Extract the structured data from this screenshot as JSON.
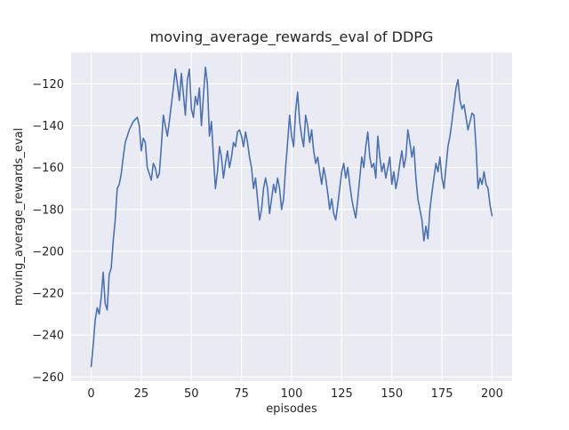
{
  "chart_data": {
    "type": "line",
    "title": "moving_average_rewards_eval of DDPG",
    "xlabel": "episodes",
    "ylabel": "moving_average_rewards_eval",
    "legend_position": "none",
    "grid": true,
    "xlim": [
      -10,
      210
    ],
    "ylim": [
      -262,
      -105
    ],
    "xticks": [
      0,
      25,
      50,
      75,
      100,
      125,
      150,
      175,
      200
    ],
    "xtick_labels": [
      "0",
      "25",
      "50",
      "75",
      "100",
      "125",
      "150",
      "175",
      "200"
    ],
    "yticks": [
      -260,
      -240,
      -220,
      -200,
      -180,
      -160,
      -140,
      -120
    ],
    "ytick_labels": [
      "−260",
      "−240",
      "−220",
      "−200",
      "−180",
      "−160",
      "−140",
      "−120"
    ],
    "styles": {
      "figure_bg": "#ffffff",
      "plot_bg": "#eaeaf2",
      "grid_color": "#ffffff",
      "line_color": "#4c72b0",
      "text_color": "#262626"
    },
    "series": [
      {
        "name": "moving_average_rewards_eval",
        "color": "#4c72b0",
        "x_start": 0,
        "x_step": 1,
        "values": [
          -255,
          -245,
          -233,
          -227,
          -230,
          -222,
          -210,
          -225,
          -228,
          -211,
          -208,
          -195,
          -185,
          -170,
          -168,
          -163,
          -155,
          -148,
          -145,
          -142,
          -140,
          -138,
          -137,
          -136,
          -140,
          -152,
          -146,
          -148,
          -160,
          -163,
          -166,
          -158,
          -160,
          -165,
          -163,
          -150,
          -135,
          -140,
          -145,
          -138,
          -130,
          -122,
          -113,
          -120,
          -128,
          -115,
          -125,
          -135,
          -118,
          -113,
          -132,
          -136,
          -126,
          -130,
          -122,
          -140,
          -126,
          -112,
          -120,
          -145,
          -138,
          -155,
          -170,
          -162,
          -150,
          -155,
          -165,
          -158,
          -152,
          -160,
          -155,
          -148,
          -150,
          -143,
          -142,
          -145,
          -150,
          -143,
          -148,
          -155,
          -160,
          -170,
          -165,
          -175,
          -185,
          -180,
          -170,
          -165,
          -170,
          -182,
          -175,
          -168,
          -172,
          -165,
          -170,
          -180,
          -175,
          -160,
          -148,
          -135,
          -145,
          -150,
          -133,
          -124,
          -138,
          -145,
          -150,
          -135,
          -140,
          -148,
          -142,
          -152,
          -158,
          -155,
          -162,
          -168,
          -160,
          -165,
          -172,
          -180,
          -175,
          -182,
          -185,
          -178,
          -170,
          -162,
          -158,
          -165,
          -160,
          -168,
          -175,
          -180,
          -184,
          -175,
          -165,
          -155,
          -160,
          -150,
          -143,
          -155,
          -160,
          -158,
          -165,
          -145,
          -155,
          -162,
          -158,
          -165,
          -160,
          -155,
          -168,
          -162,
          -170,
          -165,
          -158,
          -152,
          -160,
          -155,
          -142,
          -148,
          -155,
          -150,
          -165,
          -175,
          -180,
          -185,
          -195,
          -188,
          -194,
          -180,
          -172,
          -165,
          -158,
          -162,
          -155,
          -165,
          -170,
          -160,
          -150,
          -145,
          -138,
          -130,
          -122,
          -118,
          -128,
          -132,
          -130,
          -136,
          -142,
          -138,
          -134,
          -135,
          -150,
          -170,
          -165,
          -168,
          -162,
          -168,
          -170,
          -178,
          -183
        ]
      }
    ]
  }
}
